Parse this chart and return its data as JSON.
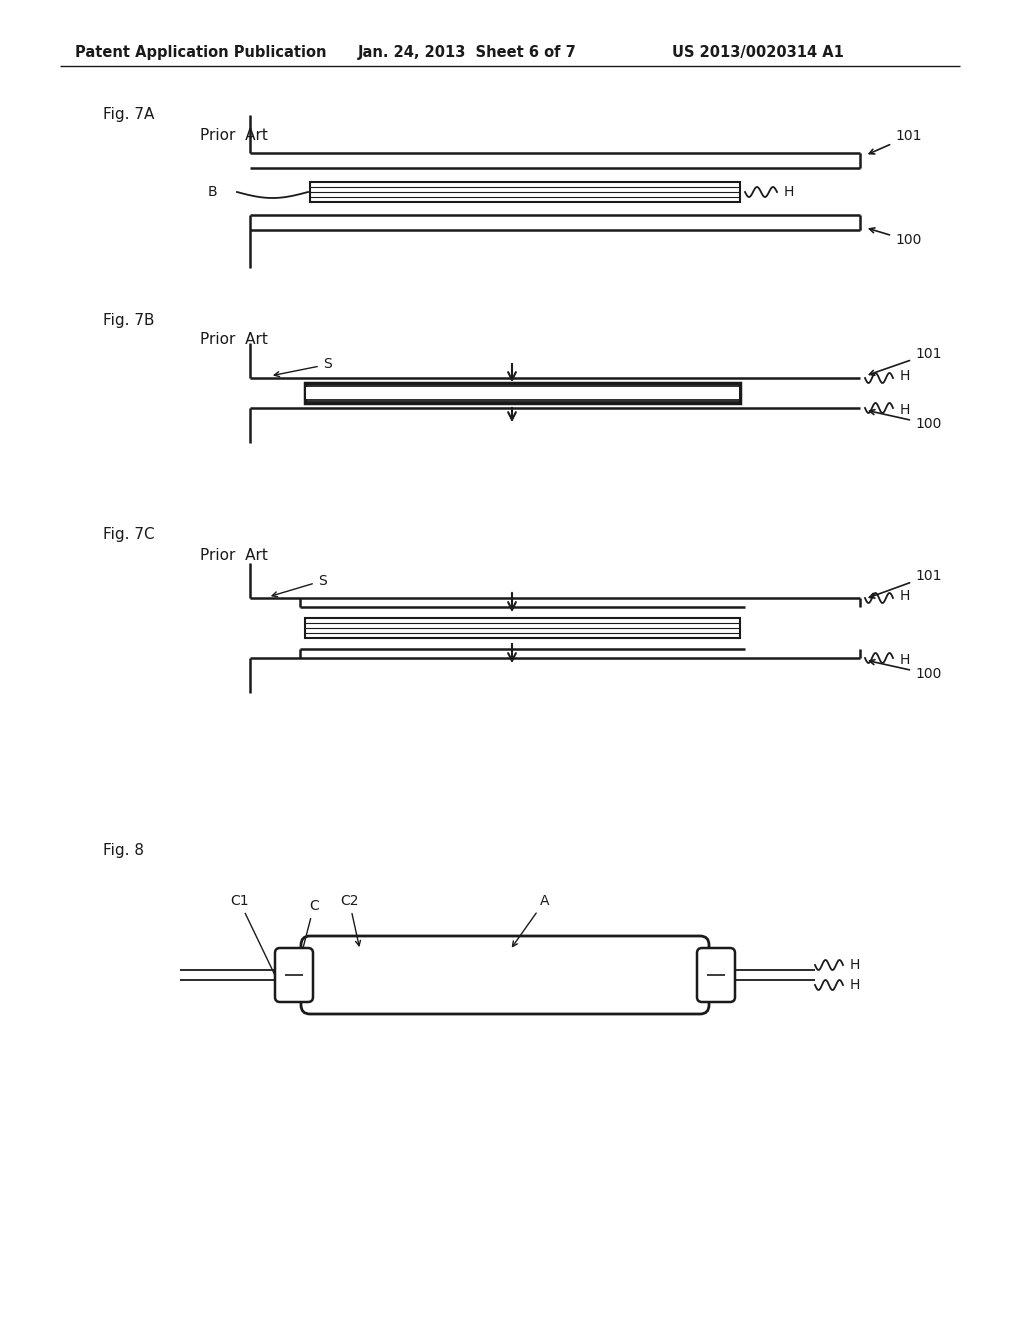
{
  "header_left": "Patent Application Publication",
  "header_center": "Jan. 24, 2013  Sheet 6 of 7",
  "header_right": "US 2013/0020314 A1",
  "bg_color": "#ffffff",
  "line_color": "#1a1a1a",
  "fig7A_label": "Fig. 7A",
  "fig7B_label": "Fig. 7B",
  "fig7C_label": "Fig. 7C",
  "fig8_label": "Fig. 8",
  "prior_art": "Prior  Art"
}
